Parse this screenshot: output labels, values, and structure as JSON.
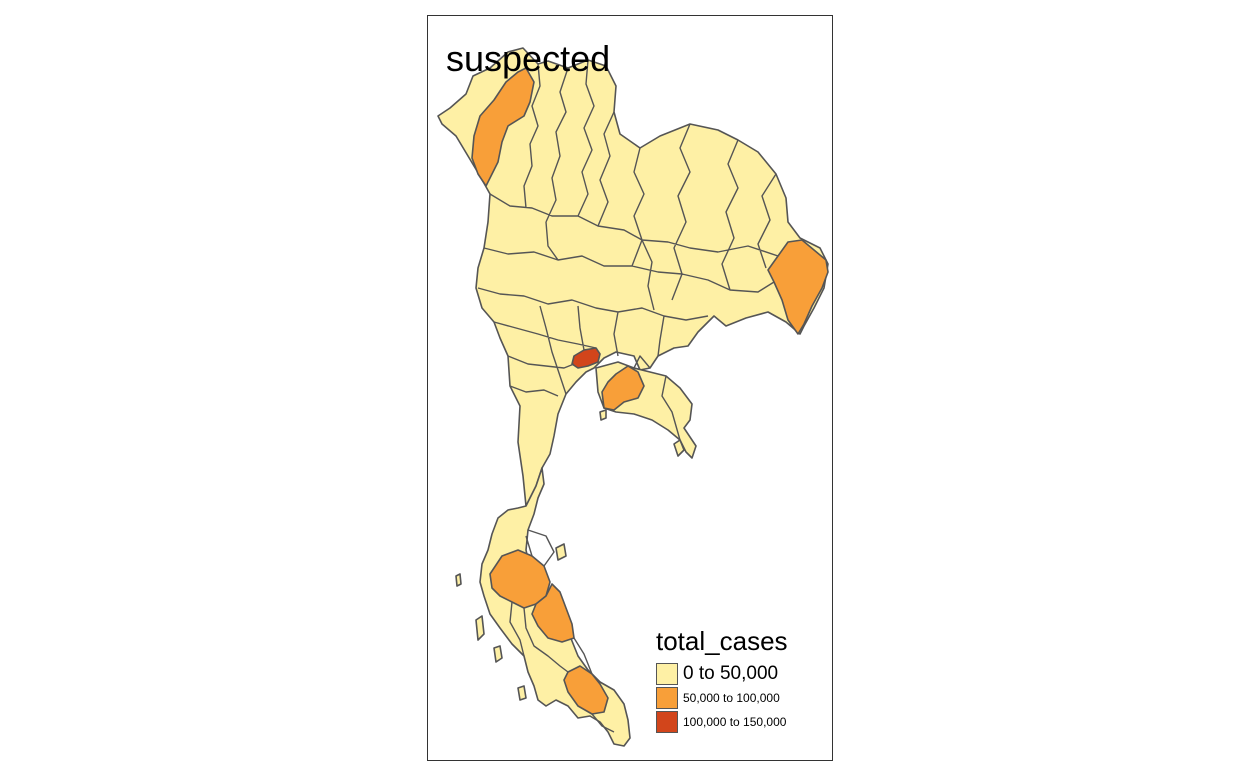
{
  "map": {
    "title": "suspected",
    "variable": "total_cases"
  },
  "legend": {
    "title": "total_cases",
    "items": [
      {
        "label": "0 to 50,000",
        "color": "#FEF0A5"
      },
      {
        "label": "50,000 to 100,000",
        "color": "#F89F39"
      },
      {
        "label": "100,000 to 150,000",
        "color": "#D2451B"
      }
    ]
  },
  "colors": {
    "background": "#FFFFFF",
    "frame": "#333333",
    "border": "#555555"
  }
}
